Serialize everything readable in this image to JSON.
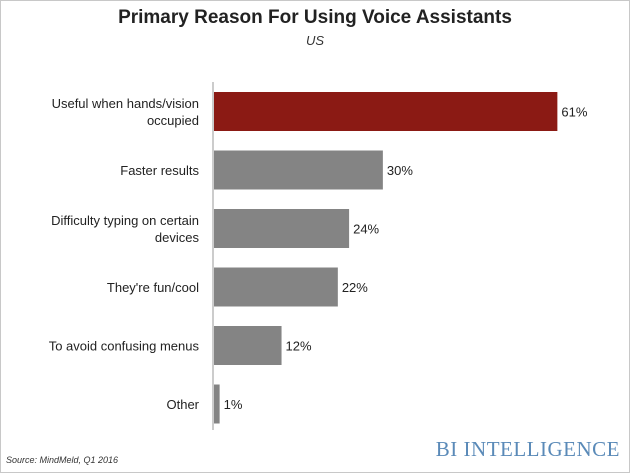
{
  "chart_data": {
    "type": "bar",
    "orientation": "horizontal",
    "title": "Primary Reason For Using Voice Assistants",
    "subtitle": "US",
    "categories": [
      "Useful when hands/vision occupied",
      "Faster results",
      "Difficulty typing on certain devices",
      "They're fun/cool",
      "To avoid confusing menus",
      "Other"
    ],
    "category_lines": [
      [
        "Useful when hands/vision",
        "occupied"
      ],
      [
        "Faster results"
      ],
      [
        "Difficulty typing on certain",
        "devices"
      ],
      [
        "They're fun/cool"
      ],
      [
        "To avoid confusing menus"
      ],
      [
        "Other"
      ]
    ],
    "values": [
      61,
      30,
      24,
      22,
      12,
      1
    ],
    "value_labels": [
      "61%",
      "30%",
      "24%",
      "22%",
      "12%",
      "1%"
    ],
    "highlight_index": 0,
    "colors": {
      "highlight": "#8b1a14",
      "default": "#848484",
      "axis": "#999999"
    },
    "xlim": [
      0,
      62
    ],
    "grid": false,
    "legend": false
  },
  "source": "Source: MindMeld, Q1 2016",
  "brand": "BI INTELLIGENCE"
}
